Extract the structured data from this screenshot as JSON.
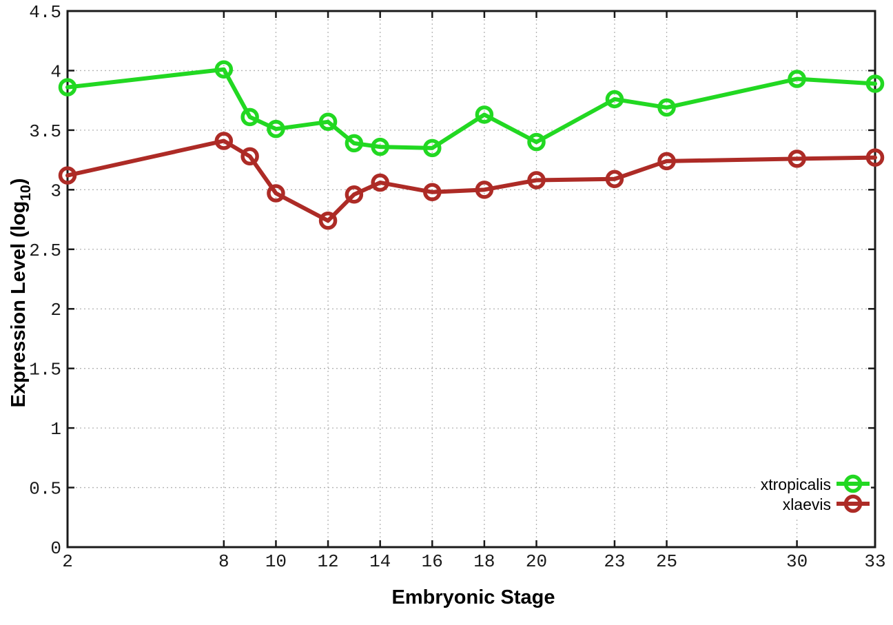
{
  "chart_data": {
    "type": "line",
    "title": "",
    "xlabel": "Embryonic Stage",
    "ylabel": "Expression Level (log10)",
    "ylabel_parts": {
      "prefix": "Expression Level (log",
      "sub": "10",
      "suffix": ")"
    },
    "x": [
      2,
      8,
      9,
      10,
      12,
      13,
      14,
      16,
      18,
      20,
      23,
      25,
      30,
      33
    ],
    "series": [
      {
        "name": "xtropicalis",
        "color": "#22d822",
        "marker": "open-circle",
        "values": [
          3.86,
          4.01,
          3.61,
          3.51,
          3.57,
          3.39,
          3.36,
          3.35,
          3.63,
          3.4,
          3.76,
          3.69,
          3.93,
          3.89
        ]
      },
      {
        "name": "xlaevis",
        "color": "#ad2b26",
        "marker": "open-circle",
        "values": [
          3.12,
          3.41,
          3.28,
          2.97,
          2.74,
          2.96,
          3.06,
          2.98,
          3.0,
          3.08,
          3.09,
          3.24,
          3.26,
          3.27
        ]
      }
    ],
    "xlim": [
      2,
      33
    ],
    "ylim": [
      0,
      4.5
    ],
    "x_tick_values": [
      2,
      8,
      10,
      12,
      14,
      16,
      18,
      20,
      23,
      25,
      30,
      33
    ],
    "x_tick_labels": [
      "2",
      "8",
      "10",
      "12",
      "14",
      "16",
      "18",
      "20",
      "23",
      "25",
      "30",
      "33"
    ],
    "y_tick_values": [
      0,
      0.5,
      1,
      1.5,
      2,
      2.5,
      3,
      3.5,
      4,
      4.5
    ],
    "y_tick_labels": [
      "0",
      "0.5",
      "1",
      "1.5",
      "2",
      "2.5",
      "3",
      "3.5",
      "4",
      "4.5"
    ],
    "grid": true,
    "legend_position": "bottom-right",
    "colors": {
      "border": "#1a1a1a",
      "gridline": "#b3b3b3",
      "tick_text": "#1a1a1a",
      "background": "#ffffff"
    }
  }
}
